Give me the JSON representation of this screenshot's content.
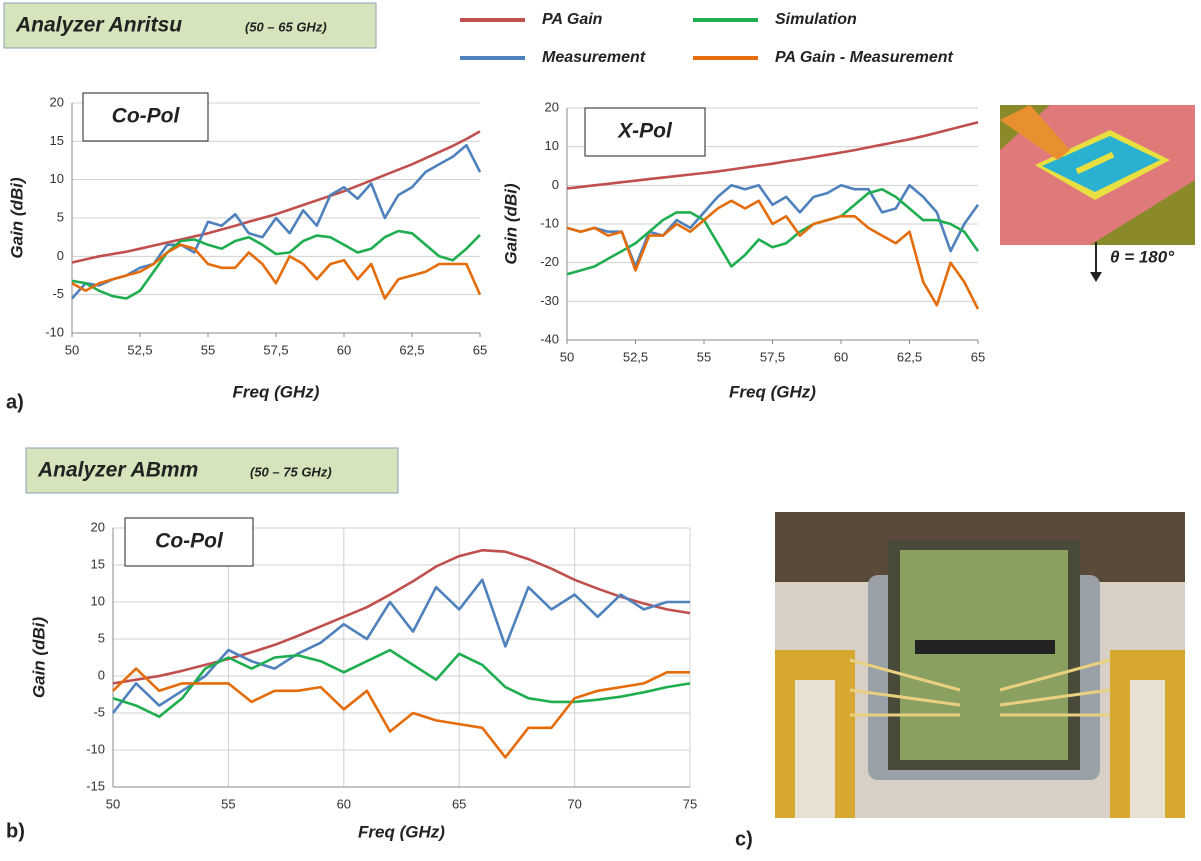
{
  "labels": {
    "analyzer_a": "Analyzer Anritsu",
    "range_a": "(50 – 65 GHz)",
    "analyzer_b": "Analyzer ABmm",
    "range_b": "(50 – 75 GHz)",
    "panel_a": "a)",
    "panel_b": "b)",
    "panel_c": "c)",
    "theta": "θ = 180°"
  },
  "chart_data": [
    {
      "type": "line",
      "title": "Co-Pol",
      "x_label": "Freq (GHz)",
      "y_label": "Gain (dBi)",
      "x": [
        50,
        50.5,
        51,
        51.5,
        52,
        52.5,
        53,
        53.5,
        54,
        54.5,
        55,
        55.5,
        56,
        56.5,
        57,
        57.5,
        58,
        58.5,
        59,
        59.5,
        60,
        60.5,
        61,
        61.5,
        62,
        62.5,
        63,
        63.5,
        64,
        64.5,
        65
      ],
      "xlim": [
        50,
        65
      ],
      "xticks": [
        50,
        {
          "value": 52.5,
          "label": "52,5"
        },
        55,
        {
          "value": 57.5,
          "label": "57,5"
        },
        60,
        {
          "value": 62.5,
          "label": "62,5"
        },
        65
      ],
      "ylim": [
        -10,
        20
      ],
      "yticks": [
        -10,
        -5,
        0,
        5,
        10,
        15,
        20
      ],
      "grid": true,
      "series": [
        {
          "name": "PA Gain",
          "color": "#c0504d",
          "values": [
            -0.8,
            -0.4,
            0,
            0.3,
            0.6,
            1.0,
            1.4,
            1.8,
            2.2,
            2.6,
            3.0,
            3.5,
            4.0,
            4.5,
            5.0,
            5.5,
            6.1,
            6.7,
            7.3,
            7.9,
            8.5,
            9.2,
            9.9,
            10.6,
            11.3,
            12.0,
            12.8,
            13.6,
            14.4,
            15.3,
            16.3
          ]
        },
        {
          "name": "Measurement",
          "color": "#4f81bd",
          "values": [
            -5.5,
            -3.5,
            -3.8,
            -3,
            -2.5,
            -1.5,
            -1,
            1.5,
            1.5,
            0.5,
            4.5,
            4,
            5.5,
            3,
            2.5,
            5,
            3,
            6,
            4,
            8,
            9,
            7.5,
            9.5,
            5,
            8,
            9,
            11,
            12,
            13,
            14.5,
            11
          ]
        },
        {
          "name": "Simulation",
          "color": "#1fae4f",
          "values": [
            -3.2,
            -3.5,
            -4.5,
            -5.2,
            -5.5,
            -4.5,
            -2,
            0.5,
            2,
            2.2,
            1.5,
            1,
            2,
            2.5,
            1.5,
            0.3,
            0.5,
            2,
            2.7,
            2.5,
            1.5,
            0.5,
            1,
            2.5,
            3.3,
            3,
            1.5,
            0,
            -0.5,
            1,
            2.8
          ]
        },
        {
          "name": "PA Gain - Measurement",
          "color": "#e46c0a",
          "values": [
            -3.5,
            -4.5,
            -3.5,
            -3,
            -2.5,
            -2,
            -1,
            0.5,
            1.5,
            1,
            -1,
            -1.5,
            -1.5,
            0.5,
            -1,
            -3.5,
            0,
            -1,
            -3,
            -1,
            -0.5,
            -3,
            -1,
            -5.5,
            -3,
            -2.5,
            -2,
            -1,
            -1,
            -1,
            -5
          ]
        }
      ]
    },
    {
      "type": "line",
      "title": "X-Pol",
      "x_label": "Freq (GHz)",
      "y_label": "Gain (dBi)",
      "x": [
        50,
        50.5,
        51,
        51.5,
        52,
        52.5,
        53,
        53.5,
        54,
        54.5,
        55,
        55.5,
        56,
        56.5,
        57,
        57.5,
        58,
        58.5,
        59,
        59.5,
        60,
        60.5,
        61,
        61.5,
        62,
        62.5,
        63,
        63.5,
        64,
        64.5,
        65
      ],
      "xlim": [
        50,
        65
      ],
      "xticks": [
        50,
        {
          "value": 52.5,
          "label": "52,5"
        },
        55,
        {
          "value": 57.5,
          "label": "57,5"
        },
        60,
        {
          "value": 62.5,
          "label": "62,5"
        },
        65
      ],
      "ylim": [
        -40,
        20
      ],
      "yticks": [
        -40,
        -30,
        -20,
        -10,
        0,
        10,
        20
      ],
      "grid": true,
      "series": [
        {
          "color": "#c0504d",
          "values": [
            -0.8,
            -0.4,
            0,
            0.4,
            0.8,
            1.2,
            1.6,
            2,
            2.4,
            2.8,
            3.2,
            3.6,
            4.1,
            4.6,
            5.1,
            5.6,
            6.2,
            6.7,
            7.3,
            7.9,
            8.5,
            9.1,
            9.8,
            10.5,
            11.2,
            11.9,
            12.7,
            13.6,
            14.5,
            15.4,
            16.3
          ]
        },
        {
          "color": "#4f81bd",
          "values": [
            -11,
            -12,
            -11,
            -12,
            -12,
            -21,
            -12,
            -13,
            -9,
            -11,
            -7,
            -3,
            0,
            -1,
            0,
            -5,
            -3,
            -7,
            -3,
            -2,
            0,
            -1,
            -1,
            -7,
            -6,
            0,
            -3,
            -7,
            -17,
            -10,
            -5
          ]
        },
        {
          "color": "#1fae4f",
          "values": [
            -23,
            -22,
            -21,
            -19,
            -17,
            -15,
            -12,
            -9,
            -7,
            -7,
            -9,
            -15,
            -21,
            -18,
            -14,
            -16,
            -15,
            -12,
            -10,
            -9,
            -8,
            -5,
            -2,
            -1,
            -3,
            -6,
            -9,
            -9,
            -10,
            -12,
            -17
          ]
        },
        {
          "color": "#e46c0a",
          "values": [
            -11,
            -12,
            -11,
            -13,
            -12,
            -22,
            -13,
            -13,
            -10,
            -12,
            -9,
            -6,
            -4,
            -6,
            -4,
            -10,
            -8,
            -13,
            -10,
            -9,
            -8,
            -8,
            -11,
            -13,
            -15,
            -12,
            -25,
            -31,
            -20,
            -25,
            -32
          ]
        }
      ]
    },
    {
      "type": "line",
      "title": "Co-Pol",
      "x_label": "Freq (GHz)",
      "y_label": "Gain (dBi)",
      "x": [
        50,
        51,
        52,
        53,
        54,
        55,
        56,
        57,
        58,
        59,
        60,
        61,
        62,
        63,
        64,
        65,
        66,
        67,
        68,
        69,
        70,
        71,
        72,
        73,
        74,
        75
      ],
      "xlim": [
        50,
        75
      ],
      "xticks": [
        50,
        55,
        60,
        65,
        70,
        75
      ],
      "ylim": [
        -15,
        20
      ],
      "yticks": [
        -15,
        -10,
        -5,
        0,
        5,
        10,
        15,
        20
      ],
      "grid": true,
      "xgrid": true,
      "series": [
        {
          "color": "#c0504d",
          "values": [
            -1,
            -0.5,
            0,
            0.7,
            1.5,
            2.3,
            3.2,
            4.2,
            5.4,
            6.7,
            8,
            9.3,
            11,
            12.8,
            14.8,
            16.2,
            17,
            16.8,
            15.8,
            14.5,
            13,
            11.8,
            10.7,
            9.8,
            9,
            8.5
          ]
        },
        {
          "color": "#4f81bd",
          "values": [
            -5,
            -1,
            -4,
            -2,
            0,
            3.5,
            2,
            1,
            3,
            4.5,
            7,
            5,
            10,
            6,
            12,
            9,
            13,
            4,
            12,
            9,
            11,
            8,
            11,
            9,
            10,
            10
          ]
        },
        {
          "color": "#1fae4f",
          "values": [
            -3,
            -4,
            -5.5,
            -3,
            1,
            2.5,
            1,
            2.5,
            2.8,
            2,
            0.5,
            2,
            3.5,
            1.5,
            -0.5,
            3,
            1.5,
            -1.5,
            -3,
            -3.5,
            -3.5,
            -3.2,
            -2.8,
            -2.2,
            -1.5,
            -1
          ]
        },
        {
          "color": "#e46c0a",
          "values": [
            -2,
            1,
            -2,
            -1,
            -1,
            -1,
            -3.5,
            -2,
            -2,
            -1.5,
            -4.5,
            -2,
            -7.5,
            -5,
            -6,
            -6.5,
            -7,
            -11,
            -7,
            -7,
            -3,
            -2,
            -1.5,
            -1,
            0.5,
            0.5
          ]
        }
      ]
    }
  ]
}
